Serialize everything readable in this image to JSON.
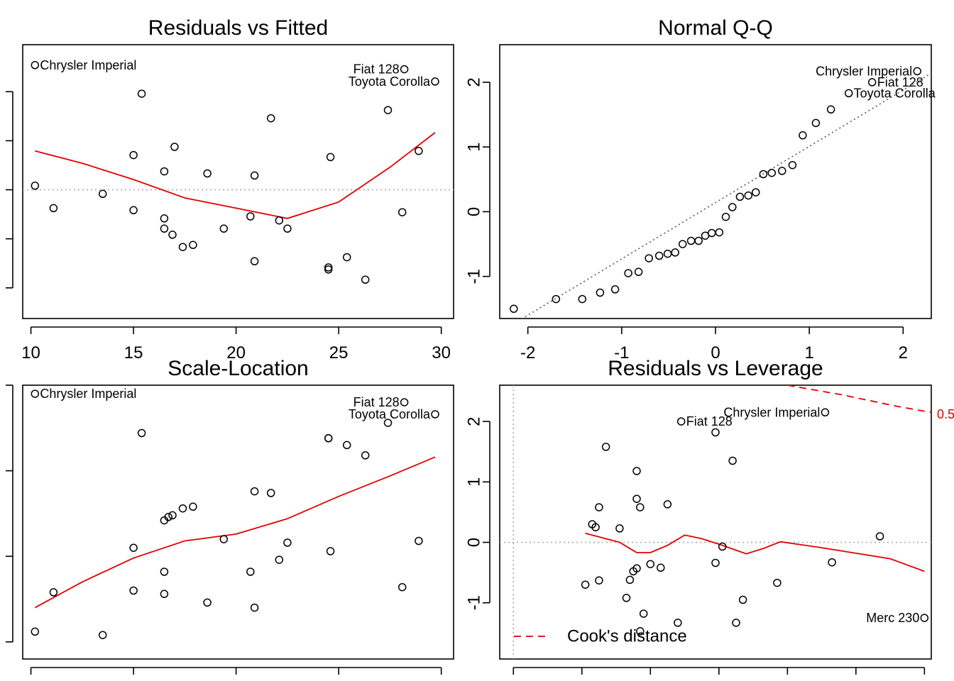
{
  "chart_data": [
    {
      "type": "scatter",
      "title": "Residuals vs Fitted",
      "xlabel": "",
      "ylabel": "",
      "xlim": [
        9.6,
        30.6
      ],
      "ylim": [
        -6.3,
        7.1
      ],
      "xticks": [
        10,
        15,
        20,
        25,
        30
      ],
      "xtick_labels": [
        "10",
        "15",
        "20",
        "25",
        "30"
      ],
      "yticks": [
        -4.8,
        -2.4,
        0,
        2.4,
        4.8
      ],
      "ytick_labels": [
        "",
        "",
        "",
        "",
        ""
      ],
      "ref_line": 0,
      "points": [
        [
          10.2,
          6.1
        ],
        [
          15.4,
          4.7
        ],
        [
          28.2,
          5.9
        ],
        [
          29.7,
          5.3
        ],
        [
          27.4,
          3.9
        ],
        [
          21.7,
          3.5
        ],
        [
          17.0,
          2.1
        ],
        [
          15.0,
          1.7
        ],
        [
          24.6,
          1.6
        ],
        [
          28.9,
          1.9
        ],
        [
          16.5,
          0.9
        ],
        [
          18.6,
          0.8
        ],
        [
          20.9,
          0.7
        ],
        [
          10.2,
          0.2
        ],
        [
          13.5,
          -0.2
        ],
        [
          11.1,
          -0.9
        ],
        [
          15.0,
          -1.0
        ],
        [
          16.5,
          -1.4
        ],
        [
          16.5,
          -1.9
        ],
        [
          16.9,
          -2.2
        ],
        [
          19.4,
          -1.9
        ],
        [
          20.7,
          -1.3
        ],
        [
          22.1,
          -1.5
        ],
        [
          22.5,
          -1.9
        ],
        [
          28.1,
          -1.1
        ],
        [
          17.4,
          -2.8
        ],
        [
          17.9,
          -2.7
        ],
        [
          20.9,
          -3.5
        ],
        [
          24.5,
          -3.8
        ],
        [
          24.5,
          -3.9
        ],
        [
          25.4,
          -3.3
        ],
        [
          26.3,
          -4.4
        ]
      ],
      "smooth": [
        [
          10.2,
          1.9
        ],
        [
          12.5,
          1.3
        ],
        [
          15.0,
          0.5
        ],
        [
          17.5,
          -0.4
        ],
        [
          20.0,
          -0.9
        ],
        [
          22.5,
          -1.4
        ],
        [
          25.0,
          -0.6
        ],
        [
          27.5,
          1.1
        ],
        [
          29.7,
          2.8
        ]
      ],
      "labels": [
        {
          "text": "Chrysler Imperial",
          "x": 10.2,
          "y": 6.1,
          "side": "right"
        },
        {
          "text": "Fiat 128",
          "x": 28.2,
          "y": 5.9,
          "side": "left"
        },
        {
          "text": "Toyota Corolla",
          "x": 29.7,
          "y": 5.3,
          "side": "left"
        }
      ]
    },
    {
      "type": "scatter",
      "title": "Normal Q-Q",
      "xlabel": "",
      "ylabel": "",
      "xlim": [
        -2.3,
        2.3
      ],
      "ylim": [
        -1.65,
        2.58
      ],
      "xticks": [
        -2,
        -1,
        0,
        1,
        2
      ],
      "xtick_labels": [
        "-2",
        "-1",
        "0",
        "1",
        "2"
      ],
      "yticks": [
        -1,
        0,
        1,
        2
      ],
      "ytick_labels": [
        "-1",
        "0",
        "1",
        "2"
      ],
      "ref_line_xy": [
        [
          -2.3,
          -1.86
        ],
        [
          2.3,
          2.14
        ]
      ],
      "points": [
        [
          -2.15,
          -1.5
        ],
        [
          -1.7,
          -1.35
        ],
        [
          -1.42,
          -1.35
        ],
        [
          -1.23,
          -1.25
        ],
        [
          -1.07,
          -1.2
        ],
        [
          -0.93,
          -0.95
        ],
        [
          -0.82,
          -0.93
        ],
        [
          -0.71,
          -0.72
        ],
        [
          -0.6,
          -0.68
        ],
        [
          -0.51,
          -0.65
        ],
        [
          -0.43,
          -0.63
        ],
        [
          -0.35,
          -0.5
        ],
        [
          -0.26,
          -0.45
        ],
        [
          -0.18,
          -0.45
        ],
        [
          -0.11,
          -0.37
        ],
        [
          -0.04,
          -0.33
        ],
        [
          0.04,
          -0.32
        ],
        [
          0.11,
          -0.08
        ],
        [
          0.18,
          0.07
        ],
        [
          0.26,
          0.23
        ],
        [
          0.35,
          0.25
        ],
        [
          0.43,
          0.3
        ],
        [
          0.51,
          0.58
        ],
        [
          0.6,
          0.6
        ],
        [
          0.71,
          0.63
        ],
        [
          0.82,
          0.72
        ],
        [
          0.93,
          1.18
        ],
        [
          1.07,
          1.37
        ],
        [
          1.23,
          1.58
        ],
        [
          1.42,
          1.83
        ],
        [
          1.67,
          2.0
        ],
        [
          2.15,
          2.17
        ]
      ],
      "labels": [
        {
          "text": "Chrysler Imperial",
          "x": 2.15,
          "y": 2.17,
          "side": "left"
        },
        {
          "text": "Fiat 128",
          "x": 1.67,
          "y": 2.0,
          "side": "right"
        },
        {
          "text": "Toyota Corolla",
          "x": 1.42,
          "y": 1.83,
          "side": "right"
        }
      ]
    },
    {
      "type": "scatter",
      "title": "Scale-Location",
      "xlabel": "",
      "ylabel": "",
      "xlim": [
        9.6,
        30.6
      ],
      "ylim": [
        -0.1,
        1.5
      ],
      "xticks": [
        10,
        15,
        20,
        25,
        30
      ],
      "xtick_labels": [
        "",
        "",
        "",
        "",
        ""
      ],
      "yticks": [
        0.0,
        0.5,
        1.0,
        1.5
      ],
      "ytick_labels": [
        "",
        "",
        "",
        ""
      ],
      "points": [
        [
          10.2,
          1.45
        ],
        [
          15.4,
          1.22
        ],
        [
          28.2,
          1.4
        ],
        [
          29.7,
          1.33
        ],
        [
          27.4,
          1.28
        ],
        [
          24.5,
          1.19
        ],
        [
          24.5,
          1.19
        ],
        [
          25.4,
          1.15
        ],
        [
          26.3,
          1.09
        ],
        [
          20.9,
          0.88
        ],
        [
          21.7,
          0.87
        ],
        [
          17.4,
          0.78
        ],
        [
          17.9,
          0.79
        ],
        [
          16.5,
          0.71
        ],
        [
          16.7,
          0.73
        ],
        [
          16.9,
          0.74
        ],
        [
          19.4,
          0.6
        ],
        [
          22.5,
          0.58
        ],
        [
          28.9,
          0.59
        ],
        [
          15.0,
          0.55
        ],
        [
          24.6,
          0.53
        ],
        [
          22.1,
          0.48
        ],
        [
          20.7,
          0.41
        ],
        [
          16.5,
          0.41
        ],
        [
          15.0,
          0.3
        ],
        [
          11.1,
          0.29
        ],
        [
          16.5,
          0.28
        ],
        [
          18.6,
          0.23
        ],
        [
          20.9,
          0.2
        ],
        [
          28.1,
          0.32
        ],
        [
          10.2,
          0.06
        ],
        [
          13.5,
          0.04
        ]
      ],
      "smooth": [
        [
          10.2,
          0.2
        ],
        [
          12.5,
          0.35
        ],
        [
          15.0,
          0.49
        ],
        [
          17.5,
          0.59
        ],
        [
          20.0,
          0.63
        ],
        [
          22.5,
          0.72
        ],
        [
          25.0,
          0.85
        ],
        [
          27.5,
          0.97
        ],
        [
          29.7,
          1.08
        ]
      ],
      "labels": [
        {
          "text": "Chrysler Imperial",
          "x": 10.2,
          "y": 1.45,
          "side": "right"
        },
        {
          "text": "Fiat 128",
          "x": 28.2,
          "y": 1.4,
          "side": "left"
        },
        {
          "text": "Toyota Corolla",
          "x": 29.7,
          "y": 1.33,
          "side": "left"
        }
      ]
    },
    {
      "type": "scatter",
      "title": "Residuals vs Leverage",
      "xlabel": "",
      "ylabel": "",
      "xlim": [
        -0.01,
        0.305
      ],
      "ylim": [
        -1.93,
        2.6
      ],
      "xticks": [
        0.0,
        0.05,
        0.1,
        0.15,
        0.2,
        0.25,
        0.3
      ],
      "xtick_labels": [
        "",
        "",
        "",
        "",
        "",
        "",
        ""
      ],
      "yticks": [
        -1,
        0,
        1,
        2
      ],
      "ytick_labels": [
        "-1",
        "0",
        "1",
        "2"
      ],
      "ref_line": 0,
      "points": [
        [
          0.0525,
          -0.7
        ],
        [
          0.0575,
          0.3
        ],
        [
          0.06,
          0.25
        ],
        [
          0.0625,
          -0.63
        ],
        [
          0.0625,
          0.58
        ],
        [
          0.0675,
          1.58
        ],
        [
          0.0775,
          0.23
        ],
        [
          0.0825,
          -0.92
        ],
        [
          0.085,
          -0.62
        ],
        [
          0.0875,
          -0.48
        ],
        [
          0.09,
          1.18
        ],
        [
          0.09,
          0.72
        ],
        [
          0.09,
          -0.43
        ],
        [
          0.0925,
          0.58
        ],
        [
          0.0925,
          -1.47
        ],
        [
          0.095,
          -1.18
        ],
        [
          0.1,
          -0.36
        ],
        [
          0.1075,
          -0.42
        ],
        [
          0.1125,
          0.63
        ],
        [
          0.12,
          -1.33
        ],
        [
          0.1225,
          2.0
        ],
        [
          0.1475,
          1.82
        ],
        [
          0.1475,
          -0.34
        ],
        [
          0.1525,
          -0.07
        ],
        [
          0.16,
          1.35
        ],
        [
          0.1625,
          -1.33
        ],
        [
          0.1675,
          -0.95
        ],
        [
          0.1925,
          -0.67
        ],
        [
          0.2275,
          2.15
        ],
        [
          0.2325,
          -0.33
        ],
        [
          0.2675,
          0.1
        ],
        [
          0.3,
          -1.25
        ]
      ],
      "smooth": [
        [
          0.0525,
          0.15
        ],
        [
          0.0775,
          0.0
        ],
        [
          0.09,
          -0.17
        ],
        [
          0.1,
          -0.17
        ],
        [
          0.1125,
          -0.05
        ],
        [
          0.125,
          0.12
        ],
        [
          0.1375,
          0.06
        ],
        [
          0.15,
          -0.03
        ],
        [
          0.1625,
          -0.13
        ],
        [
          0.17,
          -0.19
        ],
        [
          0.1825,
          -0.1
        ],
        [
          0.195,
          0.01
        ],
        [
          0.2225,
          -0.08
        ],
        [
          0.25,
          -0.18
        ],
        [
          0.275,
          -0.27
        ],
        [
          0.3,
          -0.48
        ]
      ],
      "cooks_line": [
        [
          0.2,
          2.6
        ],
        [
          0.24,
          2.44
        ],
        [
          0.28,
          2.25
        ],
        [
          0.3125,
          2.12
        ]
      ],
      "cooks_label": "0.5",
      "legend": {
        "label": "Cook's distance",
        "placement": "bottom-left"
      },
      "labels": [
        {
          "text": "Chrysler Imperial",
          "x": 0.2275,
          "y": 2.15,
          "side": "left"
        },
        {
          "text": "Fiat 128",
          "x": 0.1225,
          "y": 2.0,
          "side": "right"
        },
        {
          "text": "Merc 230",
          "x": 0.3,
          "y": -1.25,
          "side": "left"
        }
      ]
    }
  ]
}
